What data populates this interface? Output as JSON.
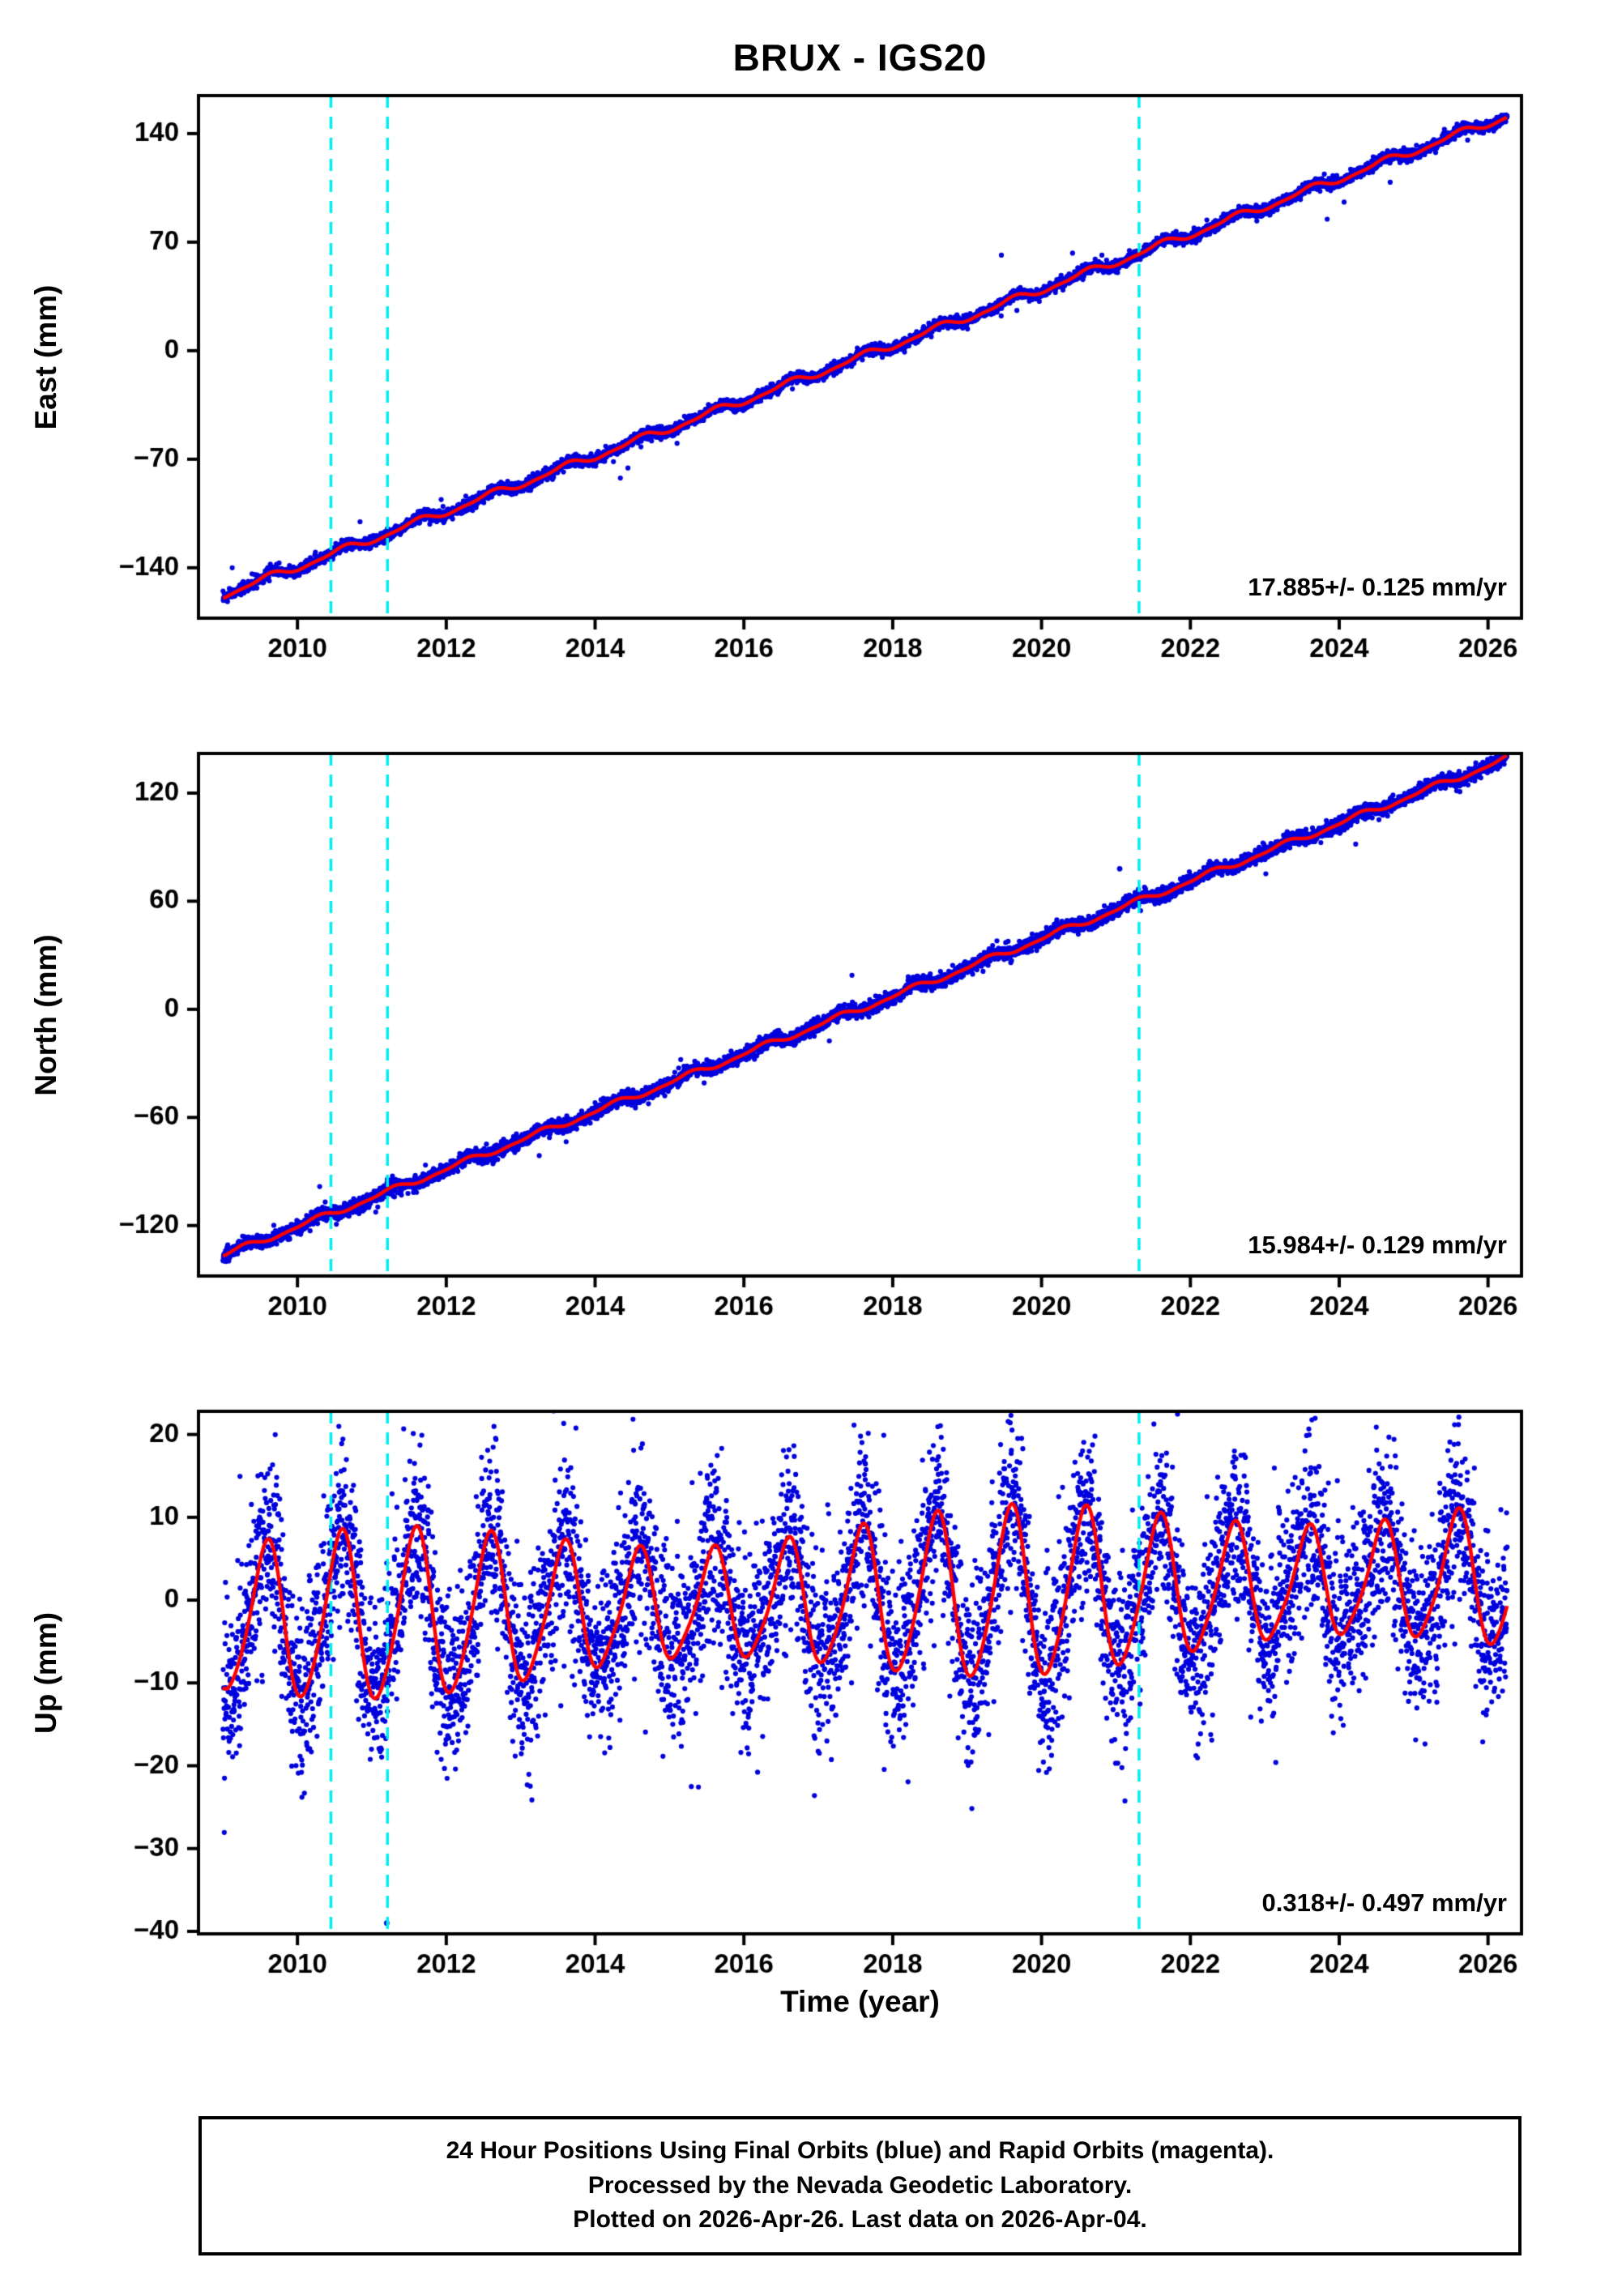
{
  "title": "BRUX - IGS20",
  "xlabel": "Time (year)",
  "colors": {
    "points": "#0000DD",
    "model_line": "#FF0000",
    "event_line": "#00EEEE",
    "frame": "#000000",
    "text": "#000000",
    "background": "#FFFFFF"
  },
  "footer_lines": [
    "24 Hour Positions Using Final Orbits (blue) and Rapid Orbits (magenta).",
    "Processed by the Nevada Geodetic Laboratory.",
    "Plotted on 2026-Apr-26. Last data on 2026-Apr-04."
  ],
  "chart_data": [
    {
      "type": "scatter",
      "component": "East",
      "ylabel": "East (mm)",
      "rate_label": "17.885+/- 0.125 mm/yr",
      "rate_mm_per_yr": 17.885,
      "rate_sigma_mm_per_yr": 0.125,
      "xlim": [
        2008.67,
        2026.45
      ],
      "ylim": [
        -172.5,
        164.5
      ],
      "xticks": [
        2010,
        2012,
        2014,
        2016,
        2018,
        2020,
        2022,
        2024,
        2026
      ],
      "yticks": [
        140,
        70,
        0,
        -70,
        -140
      ],
      "data_span_years": [
        2009.0,
        2026.26
      ],
      "event_lines_year": [
        2010.45,
        2011.21,
        2021.31
      ],
      "grid": false,
      "legend": "none",
      "synthesis": {
        "start": 2009.0,
        "end": 2026.26,
        "samples_per_year": 365,
        "trend_rate": 17.885,
        "trend_zero_year": 2017.8,
        "annual_amp": 2.2,
        "annual_peak": 0.6,
        "semiannual_amp": 0.8,
        "amp_mod": 0,
        "amp_mod_period": 1,
        "noise_std": 1.7,
        "outlier_prob": 0.004,
        "outlier_scale": 5,
        "seed": 7,
        "extra_points": []
      }
    },
    {
      "type": "scatter",
      "component": "North",
      "ylabel": "North (mm)",
      "rate_label": "15.984+/- 0.129 mm/yr",
      "rate_mm_per_yr": 15.984,
      "rate_sigma_mm_per_yr": 0.129,
      "xlim": [
        2008.67,
        2026.45
      ],
      "ylim": [
        -148,
        142
      ],
      "xticks": [
        2010,
        2012,
        2014,
        2016,
        2018,
        2020,
        2022,
        2024,
        2026
      ],
      "yticks": [
        120,
        60,
        0,
        -60,
        -120
      ],
      "data_span_years": [
        2009.0,
        2026.26
      ],
      "event_lines_year": [
        2010.45,
        2011.21,
        2021.31
      ],
      "grid": false,
      "legend": "none",
      "synthesis": {
        "start": 2009.0,
        "end": 2026.26,
        "samples_per_year": 365,
        "trend_rate": 15.984,
        "trend_zero_year": 2017.55,
        "annual_amp": 1.5,
        "annual_peak": 0.25,
        "semiannual_amp": 0.6,
        "amp_mod": 0,
        "amp_mod_period": 1,
        "noise_std": 1.9,
        "outlier_prob": 0.004,
        "outlier_scale": 5,
        "seed": 21,
        "extra_points": [
          [
            2021.05,
            78
          ]
        ]
      }
    },
    {
      "type": "scatter",
      "component": "Up",
      "ylabel": "Up (mm)",
      "rate_label": "0.318+/- 0.497 mm/yr",
      "rate_mm_per_yr": 0.318,
      "rate_sigma_mm_per_yr": 0.497,
      "xlim": [
        2008.67,
        2026.45
      ],
      "ylim": [
        -40.3,
        22.8
      ],
      "xticks": [
        2010,
        2012,
        2014,
        2016,
        2018,
        2020,
        2022,
        2024,
        2026
      ],
      "yticks": [
        20,
        10,
        0,
        -10,
        -20,
        -30,
        -40
      ],
      "data_span_years": [
        2009.0,
        2026.26
      ],
      "event_lines_year": [
        2010.45,
        2011.21,
        2021.31
      ],
      "grid": false,
      "legend": "none",
      "synthesis": {
        "start": 2009.0,
        "end": 2026.26,
        "samples_per_year": 365,
        "trend_rate": 0.318,
        "trend_zero_year": 2017.6,
        "annual_amp": 8.3,
        "annual_peak": 0.58,
        "semiannual_amp": 1.2,
        "amp_mod": 1.9,
        "amp_mod_period": 8.5,
        "noise_std": 5.3,
        "outlier_prob": 0.02,
        "outlier_scale": 1.8,
        "seed": 42,
        "extra_points": [
          [
            2011.2,
            -39
          ]
        ]
      }
    }
  ]
}
